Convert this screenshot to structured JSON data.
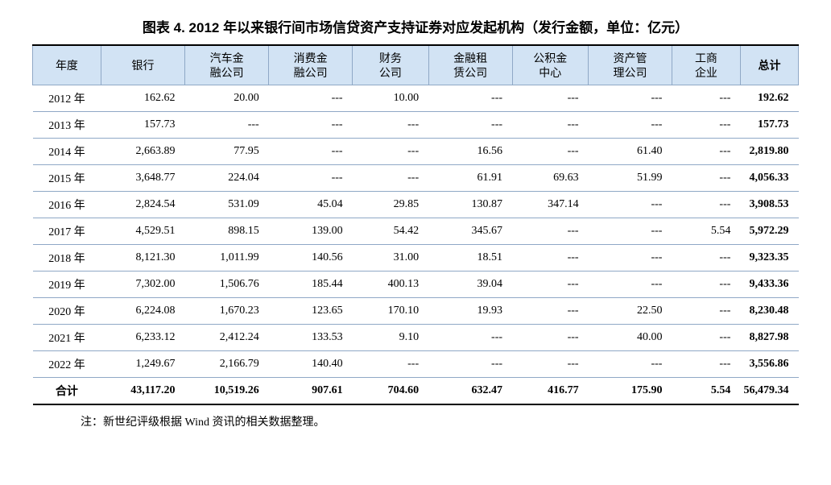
{
  "title": "图表 4. 2012 年以来银行间市场信贷资产支持证券对应发起机构（发行金额，单位：亿元）",
  "columns": [
    "年度",
    "银行",
    "汽车金\n融公司",
    "消费金\n融公司",
    "财务\n公司",
    "金融租\n赁公司",
    "公积金\n中心",
    "资产管\n理公司",
    "工商\n企业",
    "总计"
  ],
  "rows": [
    [
      "2012 年",
      "162.62",
      "20.00",
      "---",
      "10.00",
      "---",
      "---",
      "---",
      "---",
      "192.62"
    ],
    [
      "2013 年",
      "157.73",
      "---",
      "---",
      "---",
      "---",
      "---",
      "---",
      "---",
      "157.73"
    ],
    [
      "2014 年",
      "2,663.89",
      "77.95",
      "---",
      "---",
      "16.56",
      "---",
      "61.40",
      "---",
      "2,819.80"
    ],
    [
      "2015 年",
      "3,648.77",
      "224.04",
      "---",
      "---",
      "61.91",
      "69.63",
      "51.99",
      "---",
      "4,056.33"
    ],
    [
      "2016 年",
      "2,824.54",
      "531.09",
      "45.04",
      "29.85",
      "130.87",
      "347.14",
      "---",
      "---",
      "3,908.53"
    ],
    [
      "2017 年",
      "4,529.51",
      "898.15",
      "139.00",
      "54.42",
      "345.67",
      "---",
      "---",
      "5.54",
      "5,972.29"
    ],
    [
      "2018 年",
      "8,121.30",
      "1,011.99",
      "140.56",
      "31.00",
      "18.51",
      "---",
      "---",
      "---",
      "9,323.35"
    ],
    [
      "2019 年",
      "7,302.00",
      "1,506.76",
      "185.44",
      "400.13",
      "39.04",
      "---",
      "---",
      "---",
      "9,433.36"
    ],
    [
      "2020 年",
      "6,224.08",
      "1,670.23",
      "123.65",
      "170.10",
      "19.93",
      "---",
      "22.50",
      "---",
      "8,230.48"
    ],
    [
      "2021 年",
      "6,233.12",
      "2,412.24",
      "133.53",
      "9.10",
      "---",
      "---",
      "40.00",
      "---",
      "8,827.98"
    ],
    [
      "2022 年",
      "1,249.67",
      "2,166.79",
      "140.40",
      "---",
      "---",
      "---",
      "---",
      "---",
      "3,556.86"
    ],
    [
      "合计",
      "43,117.20",
      "10,519.26",
      "907.61",
      "704.60",
      "632.47",
      "416.77",
      "175.90",
      "5.54",
      "56,479.34"
    ]
  ],
  "note": "注：新世纪评级根据 Wind 资讯的相关数据整理。",
  "style": {
    "header_bg": "#d2e3f4",
    "border_color": "#8fa8c6",
    "title_fontsize": 17,
    "body_fontsize": 14,
    "col_widths_pct": [
      9,
      11,
      11,
      11,
      10,
      11,
      10,
      11,
      9,
      10
    ]
  }
}
